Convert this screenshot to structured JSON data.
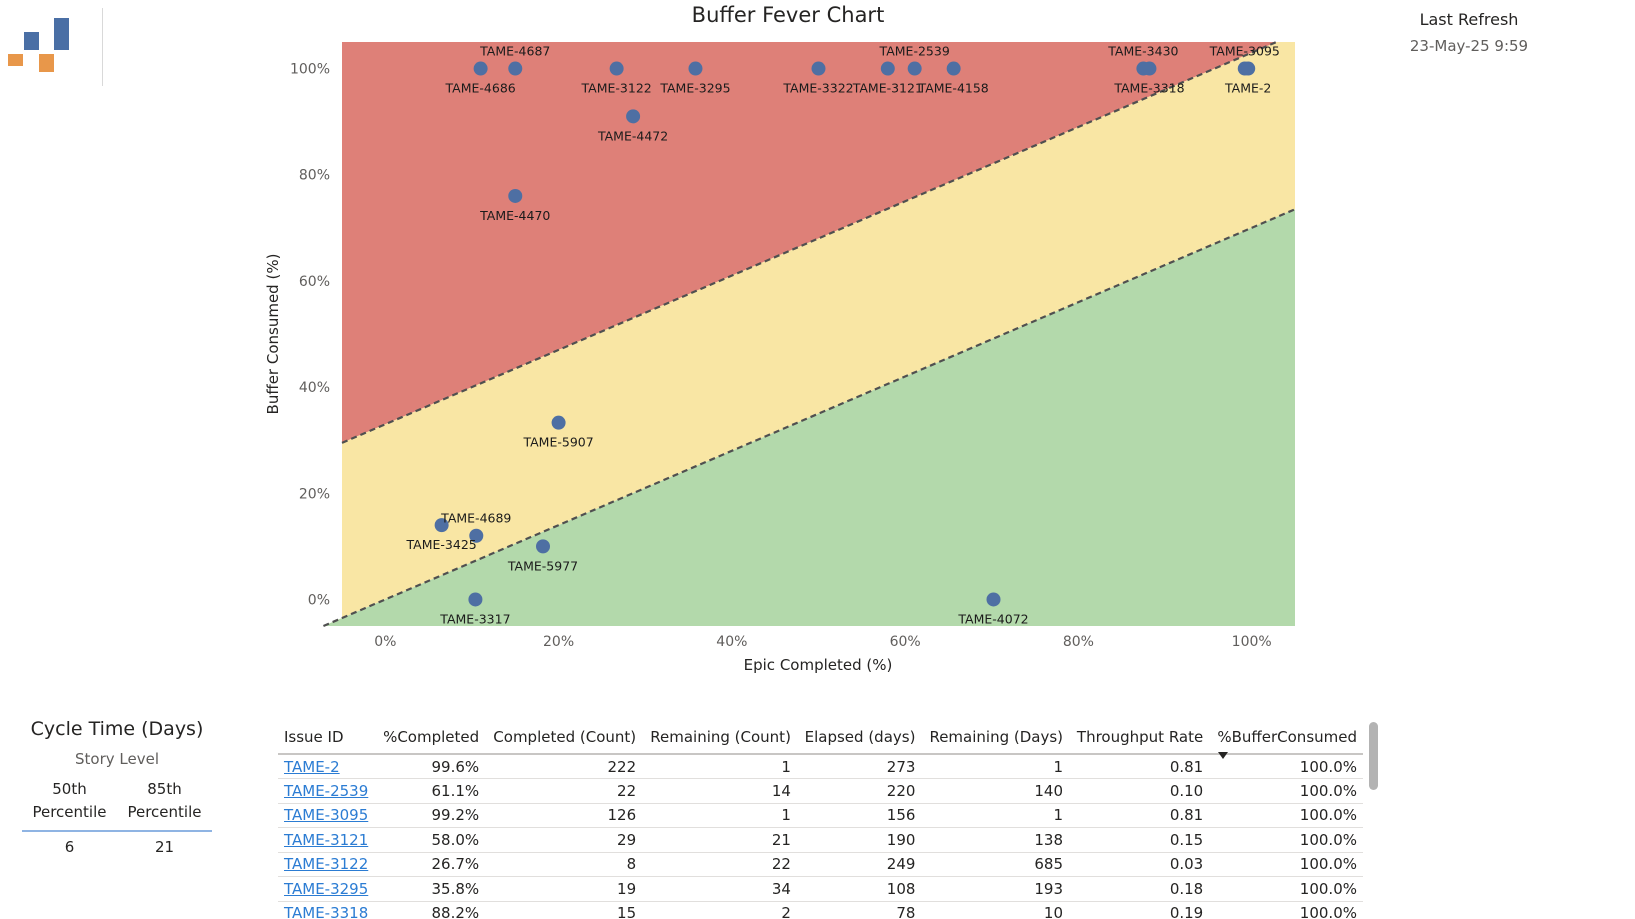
{
  "header": {
    "last_refresh_label": "Last Refresh",
    "last_refresh_value": "23-May-25 9:59"
  },
  "logo": {
    "colors": {
      "blue": "#4a6fa5",
      "orange": "#e8974a"
    }
  },
  "colors": {
    "red_zone": "#de8078",
    "yellow_zone": "#f9e6a4",
    "green_zone": "#b3d9ab",
    "point": "#4e6fa3",
    "link": "#2b7cd3"
  },
  "chart_data": {
    "type": "scatter",
    "title": "Buffer Fever Chart",
    "xlabel": "Epic Completed (%)",
    "ylabel": "Buffer Consumed (%)",
    "xlim": [
      -5,
      105
    ],
    "ylim": [
      -5,
      105
    ],
    "xticks": [
      "0%",
      "20%",
      "40%",
      "60%",
      "80%",
      "100%"
    ],
    "yticks": [
      "0%",
      "20%",
      "40%",
      "60%",
      "80%",
      "100%"
    ],
    "zones": {
      "upper_line": {
        "intercept": 33,
        "slope": 0.7
      },
      "lower_line": {
        "intercept": 0,
        "slope": 0.7
      }
    },
    "points": [
      {
        "label": "TAME-4687",
        "x": 15,
        "y": 100,
        "label_pos": "above"
      },
      {
        "label": "TAME-4686",
        "x": 11,
        "y": 100,
        "label_pos": "below"
      },
      {
        "label": "TAME-3122",
        "x": 26.7,
        "y": 100,
        "label_pos": "below"
      },
      {
        "label": "TAME-3295",
        "x": 35.8,
        "y": 100,
        "label_pos": "below"
      },
      {
        "label": "TAME-3322",
        "x": 50,
        "y": 100,
        "label_pos": "below"
      },
      {
        "label": "TAME-2539",
        "x": 61.1,
        "y": 100,
        "label_pos": "above"
      },
      {
        "label": "TAME-3121",
        "x": 58,
        "y": 100,
        "label_pos": "below"
      },
      {
        "label": "TAME-4158",
        "x": 65.6,
        "y": 100,
        "label_pos": "below"
      },
      {
        "label": "TAME-3430",
        "x": 87.5,
        "y": 100,
        "label_pos": "above"
      },
      {
        "label": "TAME-3318",
        "x": 88.2,
        "y": 100,
        "label_pos": "below"
      },
      {
        "label": "TAME-3095",
        "x": 99.2,
        "y": 100,
        "label_pos": "above"
      },
      {
        "label": "TAME-2",
        "x": 99.6,
        "y": 100,
        "label_pos": "below"
      },
      {
        "label": "TAME-4472",
        "x": 28.6,
        "y": 91,
        "label_pos": "below"
      },
      {
        "label": "TAME-4470",
        "x": 15,
        "y": 76,
        "label_pos": "below"
      },
      {
        "label": "TAME-5907",
        "x": 20,
        "y": 33.3,
        "label_pos": "below"
      },
      {
        "label": "TAME-4689",
        "x": 10.5,
        "y": 12,
        "label_pos": "above"
      },
      {
        "label": "TAME-3425",
        "x": 6.5,
        "y": 14,
        "label_pos": "below"
      },
      {
        "label": "TAME-5977",
        "x": 18.2,
        "y": 10,
        "label_pos": "below"
      },
      {
        "label": "TAME-3317",
        "x": 10.4,
        "y": 0,
        "label_pos": "below"
      },
      {
        "label": "TAME-4072",
        "x": 70.2,
        "y": 0,
        "label_pos": "below"
      }
    ]
  },
  "cycle_card": {
    "title": "Cycle Time (Days)",
    "subtitle": "Story Level",
    "col1_head_line1": "50th",
    "col1_head_line2": "Percentile",
    "col2_head_line1": "85th",
    "col2_head_line2": "Percentile",
    "col1_value": "6",
    "col2_value": "21"
  },
  "table": {
    "headers": [
      "Issue ID",
      "%Completed",
      "Completed (Count)",
      "Remaining (Count)",
      "Elapsed (days)",
      "Remaining (Days)",
      "Throughput Rate",
      "%BufferConsumed"
    ],
    "rows": [
      [
        "TAME-2",
        "99.6%",
        "222",
        "1",
        "273",
        "1",
        "0.81",
        "100.0%"
      ],
      [
        "TAME-2539",
        "61.1%",
        "22",
        "14",
        "220",
        "140",
        "0.10",
        "100.0%"
      ],
      [
        "TAME-3095",
        "99.2%",
        "126",
        "1",
        "156",
        "1",
        "0.81",
        "100.0%"
      ],
      [
        "TAME-3121",
        "58.0%",
        "29",
        "21",
        "190",
        "138",
        "0.15",
        "100.0%"
      ],
      [
        "TAME-3122",
        "26.7%",
        "8",
        "22",
        "249",
        "685",
        "0.03",
        "100.0%"
      ],
      [
        "TAME-3295",
        "35.8%",
        "19",
        "34",
        "108",
        "193",
        "0.18",
        "100.0%"
      ],
      [
        "TAME-3318",
        "88.2%",
        "15",
        "2",
        "78",
        "10",
        "0.19",
        "100.0%"
      ]
    ]
  }
}
